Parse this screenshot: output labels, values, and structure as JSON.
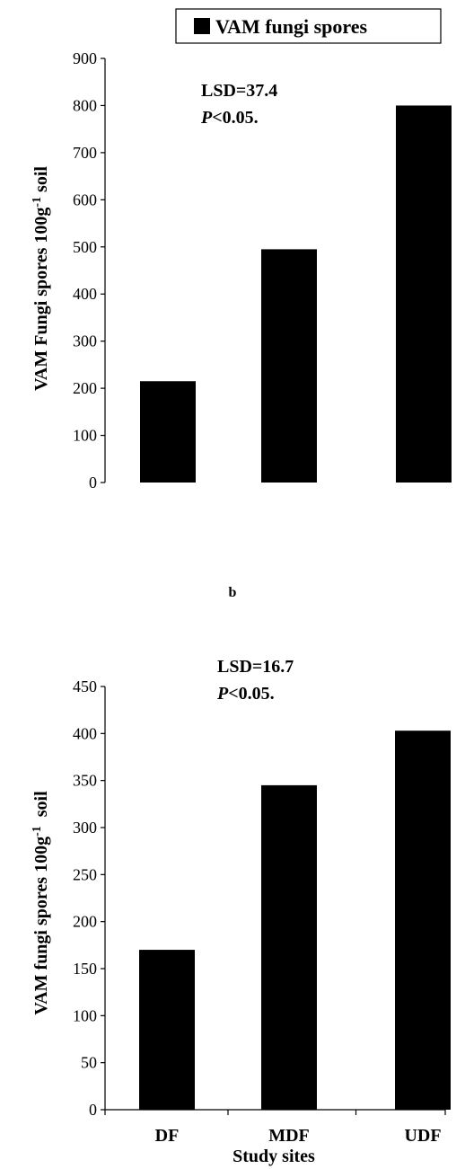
{
  "legend": {
    "label": "VAM fungi spores",
    "swatch_color": "#000000"
  },
  "panel_label_b": "b",
  "chart_data": [
    {
      "type": "bar",
      "categories": [
        "DF",
        "MDF",
        "UDF"
      ],
      "series": [
        {
          "name": "VAM fungi spores",
          "values": [
            215,
            495,
            800
          ],
          "color": "#000000"
        }
      ],
      "ylabel_main": "VAM Fungi spores 100g",
      "ylabel_sup": "-1",
      "ylabel_tail": " soil",
      "ylim": [
        0,
        900
      ],
      "yticks": [
        "0",
        "100",
        "200",
        "300",
        "400",
        "500",
        "600",
        "700",
        "800",
        "900"
      ],
      "annotation": {
        "lsd": "LSD=37.4",
        "p_italic": "P",
        "p_rest": "<0.05."
      },
      "show_category_labels": false
    },
    {
      "type": "bar",
      "categories": [
        "DF",
        "MDF",
        "UDF"
      ],
      "series": [
        {
          "name": "VAM fungi spores",
          "values": [
            170,
            345,
            403
          ],
          "color": "#000000"
        }
      ],
      "ylabel_main": "VAM fungi spores 100g",
      "ylabel_sup": "-1",
      "ylabel_tail": "  soil",
      "ylim": [
        0,
        450
      ],
      "yticks": [
        "0",
        "50",
        "100",
        "150",
        "200",
        "250",
        "300",
        "350",
        "400",
        "450"
      ],
      "xlabel": "Study sites",
      "annotation": {
        "lsd": "LSD=16.7",
        "p_italic": "P",
        "p_rest": "<0.05."
      },
      "show_category_labels": true
    }
  ]
}
